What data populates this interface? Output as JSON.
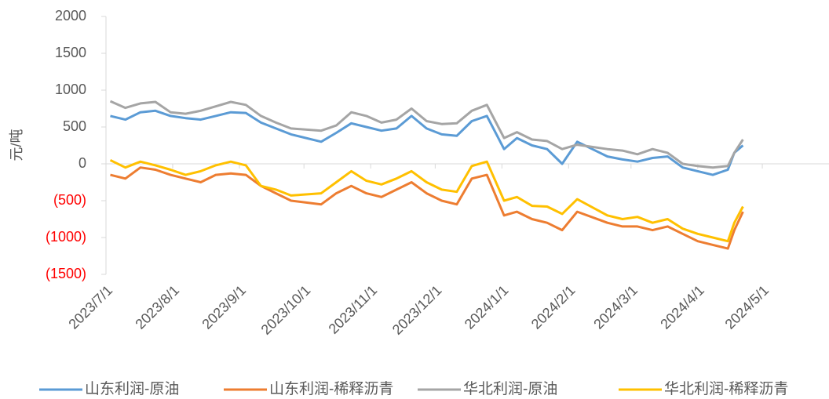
{
  "chart_data": {
    "type": "line",
    "y_label": "元/吨",
    "x": [
      "2023/7/3",
      "2023/7/10",
      "2023/7/17",
      "2023/7/24",
      "2023/7/31",
      "2023/8/7",
      "2023/8/14",
      "2023/8/21",
      "2023/8/28",
      "2023/9/4",
      "2023/9/11",
      "2023/9/18",
      "2023/9/25",
      "2023/10/9",
      "2023/10/16",
      "2023/10/23",
      "2023/10/30",
      "2023/11/6",
      "2023/11/13",
      "2023/11/20",
      "2023/11/27",
      "2023/12/4",
      "2023/12/11",
      "2023/12/18",
      "2023/12/25",
      "2024/1/2",
      "2024/1/8",
      "2024/1/15",
      "2024/1/22",
      "2024/1/29",
      "2024/2/5",
      "2024/2/19",
      "2024/2/26",
      "2024/3/4",
      "2024/3/11",
      "2024/3/18",
      "2024/3/25",
      "2024/4/1",
      "2024/4/8",
      "2024/4/15",
      "2024/4/18",
      "2024/4/22"
    ],
    "series": [
      {
        "name": "山东利润-原油",
        "color": "#5b9bd5",
        "values": [
          650,
          600,
          700,
          720,
          650,
          620,
          600,
          650,
          700,
          690,
          560,
          480,
          400,
          300,
          420,
          550,
          500,
          450,
          480,
          650,
          480,
          400,
          380,
          580,
          650,
          200,
          350,
          250,
          200,
          0,
          300,
          100,
          60,
          30,
          80,
          100,
          -50,
          -100,
          -150,
          -80,
          150,
          250
        ]
      },
      {
        "name": "山东利润-稀释沥青",
        "color": "#ed7d31",
        "values": [
          -150,
          -200,
          -50,
          -80,
          -150,
          -200,
          -250,
          -150,
          -130,
          -150,
          -300,
          -400,
          -500,
          -550,
          -400,
          -300,
          -400,
          -450,
          -350,
          -250,
          -400,
          -500,
          -550,
          -200,
          -150,
          -700,
          -650,
          -750,
          -800,
          -900,
          -650,
          -800,
          -850,
          -850,
          -900,
          -850,
          -950,
          -1050,
          -1100,
          -1150,
          -900,
          -650
        ]
      },
      {
        "name": "华北利润-原油",
        "color": "#a5a5a5",
        "values": [
          850,
          760,
          820,
          840,
          700,
          680,
          720,
          780,
          840,
          800,
          650,
          560,
          480,
          450,
          520,
          700,
          650,
          560,
          600,
          750,
          580,
          540,
          550,
          720,
          800,
          350,
          430,
          330,
          310,
          200,
          260,
          200,
          180,
          130,
          200,
          150,
          0,
          -30,
          -50,
          -30,
          150,
          330
        ]
      },
      {
        "name": "华北利润-稀释沥青",
        "color": "#ffc000",
        "values": [
          50,
          -50,
          30,
          -20,
          -80,
          -150,
          -100,
          -20,
          30,
          -20,
          -300,
          -350,
          -430,
          -400,
          -250,
          -100,
          -230,
          -280,
          -200,
          -100,
          -250,
          -350,
          -380,
          -30,
          30,
          -500,
          -450,
          -570,
          -580,
          -680,
          -480,
          -700,
          -750,
          -720,
          -800,
          -750,
          -880,
          -950,
          -1000,
          -1050,
          -800,
          -580
        ]
      }
    ],
    "xlim": [
      "2023/7/1",
      "2024/6/1"
    ],
    "xticks": [
      "2023/7/1",
      "2023/8/1",
      "2023/9/1",
      "2023/10/1",
      "2023/11/1",
      "2023/12/1",
      "2024/1/1",
      "2024/2/1",
      "2024/3/1",
      "2024/4/1",
      "2024/5/1"
    ],
    "ylim": [
      -1500,
      2000
    ],
    "yticks": [
      {
        "value": -1500,
        "label": "(1500)"
      },
      {
        "value": -1000,
        "label": "(1000)"
      },
      {
        "value": -500,
        "label": "(500)"
      },
      0,
      500,
      1000,
      1500,
      2000
    ],
    "negative_tick_color": "#ff0000",
    "grid": false,
    "legend": "bottom"
  }
}
